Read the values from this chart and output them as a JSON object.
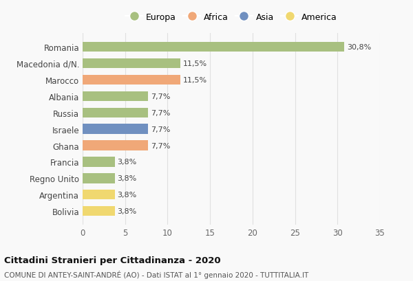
{
  "categories": [
    "Romania",
    "Macedonia d/N.",
    "Marocco",
    "Albania",
    "Russia",
    "Israele",
    "Ghana",
    "Francia",
    "Regno Unito",
    "Argentina",
    "Bolivia"
  ],
  "values": [
    30.8,
    11.5,
    11.5,
    7.7,
    7.7,
    7.7,
    7.7,
    3.8,
    3.8,
    3.8,
    3.8
  ],
  "labels": [
    "30,8%",
    "11,5%",
    "11,5%",
    "7,7%",
    "7,7%",
    "7,7%",
    "7,7%",
    "3,8%",
    "3,8%",
    "3,8%",
    "3,8%"
  ],
  "colors": [
    "#a8c080",
    "#a8c080",
    "#f0a878",
    "#a8c080",
    "#a8c080",
    "#7090c0",
    "#f0a878",
    "#a8c080",
    "#a8c080",
    "#f0d870",
    "#f0d870"
  ],
  "legend_labels": [
    "Europa",
    "Africa",
    "Asia",
    "America"
  ],
  "legend_colors": [
    "#a8c080",
    "#f0a878",
    "#7090c0",
    "#f0d870"
  ],
  "xlim": [
    0,
    35
  ],
  "xticks": [
    0,
    5,
    10,
    15,
    20,
    25,
    30,
    35
  ],
  "title_main": "Cittadini Stranieri per Cittadinanza - 2020",
  "title_sub": "COMUNE DI ANTEY-SAINT-ANDRÉ (AO) - Dati ISTAT al 1° gennaio 2020 - TUTTITALIA.IT",
  "background_color": "#f9f9f9",
  "bar_height": 0.6,
  "grid_color": "#e0e0e0"
}
